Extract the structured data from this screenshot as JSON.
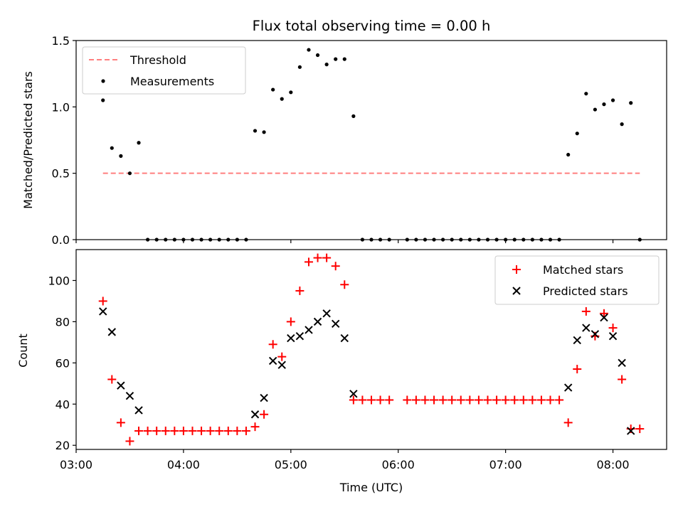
{
  "chart_data": [
    {
      "type": "scatter",
      "title": "Flux total observing time = 0.00 h",
      "xlabel": "",
      "ylabel": "Matched/Predicted stars",
      "xlim": [
        "03:00",
        "08:30"
      ],
      "ylim": [
        0.0,
        1.5
      ],
      "y_ticks": [
        "0.0",
        "0.5",
        "1.0",
        "1.5"
      ],
      "legend_position": "upper left",
      "threshold": {
        "name": "Threshold",
        "value": 0.5,
        "x_start": "03:15",
        "x_end": "08:15",
        "color": "#ff7f7f",
        "style": "dashed"
      },
      "series": [
        {
          "name": "Measurements",
          "color": "#000000",
          "marker": "dot",
          "points": [
            [
              "03:15",
              1.05
            ],
            [
              "03:20",
              0.69
            ],
            [
              "03:25",
              0.63
            ],
            [
              "03:30",
              0.5
            ],
            [
              "03:35",
              0.73
            ],
            [
              "03:40",
              0.0
            ],
            [
              "03:45",
              0.0
            ],
            [
              "03:50",
              0.0
            ],
            [
              "03:55",
              0.0
            ],
            [
              "04:00",
              0.0
            ],
            [
              "04:05",
              0.0
            ],
            [
              "04:10",
              0.0
            ],
            [
              "04:15",
              0.0
            ],
            [
              "04:20",
              0.0
            ],
            [
              "04:25",
              0.0
            ],
            [
              "04:30",
              0.0
            ],
            [
              "04:35",
              0.0
            ],
            [
              "04:40",
              0.82
            ],
            [
              "04:45",
              0.81
            ],
            [
              "04:50",
              1.13
            ],
            [
              "04:55",
              1.06
            ],
            [
              "05:00",
              1.11
            ],
            [
              "05:05",
              1.3
            ],
            [
              "05:10",
              1.43
            ],
            [
              "05:15",
              1.39
            ],
            [
              "05:20",
              1.32
            ],
            [
              "05:25",
              1.36
            ],
            [
              "05:30",
              1.36
            ],
            [
              "05:35",
              0.93
            ],
            [
              "05:40",
              0.0
            ],
            [
              "05:45",
              0.0
            ],
            [
              "05:50",
              0.0
            ],
            [
              "05:55",
              0.0
            ],
            [
              "06:05",
              0.0
            ],
            [
              "06:10",
              0.0
            ],
            [
              "06:15",
              0.0
            ],
            [
              "06:20",
              0.0
            ],
            [
              "06:25",
              0.0
            ],
            [
              "06:30",
              0.0
            ],
            [
              "06:35",
              0.0
            ],
            [
              "06:40",
              0.0
            ],
            [
              "06:45",
              0.0
            ],
            [
              "06:50",
              0.0
            ],
            [
              "06:55",
              0.0
            ],
            [
              "07:00",
              0.0
            ],
            [
              "07:05",
              0.0
            ],
            [
              "07:10",
              0.0
            ],
            [
              "07:15",
              0.0
            ],
            [
              "07:20",
              0.0
            ],
            [
              "07:25",
              0.0
            ],
            [
              "07:30",
              0.0
            ],
            [
              "07:35",
              0.64
            ],
            [
              "07:40",
              0.8
            ],
            [
              "07:45",
              1.1
            ],
            [
              "07:50",
              0.98
            ],
            [
              "07:55",
              1.02
            ],
            [
              "08:00",
              1.05
            ],
            [
              "08:05",
              0.87
            ],
            [
              "08:10",
              1.03
            ],
            [
              "08:15",
              0.0
            ]
          ]
        }
      ]
    },
    {
      "type": "scatter",
      "title": "",
      "xlabel": "Time (UTC)",
      "ylabel": "Count",
      "xlim": [
        "03:00",
        "08:30"
      ],
      "ylim": [
        18,
        115
      ],
      "x_ticks": [
        "03:00",
        "04:00",
        "05:00",
        "06:00",
        "07:00",
        "08:00"
      ],
      "y_ticks": [
        "20",
        "40",
        "60",
        "80",
        "100"
      ],
      "legend_position": "upper right",
      "series": [
        {
          "name": "Matched stars",
          "color": "#ff0000",
          "marker": "plus",
          "points": [
            [
              "03:15",
              90
            ],
            [
              "03:20",
              52
            ],
            [
              "03:25",
              31
            ],
            [
              "03:30",
              22
            ],
            [
              "03:35",
              27
            ],
            [
              "03:40",
              27
            ],
            [
              "03:45",
              27
            ],
            [
              "03:50",
              27
            ],
            [
              "03:55",
              27
            ],
            [
              "04:00",
              27
            ],
            [
              "04:05",
              27
            ],
            [
              "04:10",
              27
            ],
            [
              "04:15",
              27
            ],
            [
              "04:20",
              27
            ],
            [
              "04:25",
              27
            ],
            [
              "04:30",
              27
            ],
            [
              "04:35",
              27
            ],
            [
              "04:40",
              29
            ],
            [
              "04:45",
              35
            ],
            [
              "04:50",
              69
            ],
            [
              "04:55",
              63
            ],
            [
              "05:00",
              80
            ],
            [
              "05:05",
              95
            ],
            [
              "05:10",
              109
            ],
            [
              "05:15",
              111
            ],
            [
              "05:20",
              111
            ],
            [
              "05:25",
              107
            ],
            [
              "05:30",
              98
            ],
            [
              "05:35",
              42
            ],
            [
              "05:40",
              42
            ],
            [
              "05:45",
              42
            ],
            [
              "05:50",
              42
            ],
            [
              "05:55",
              42
            ],
            [
              "06:05",
              42
            ],
            [
              "06:10",
              42
            ],
            [
              "06:15",
              42
            ],
            [
              "06:20",
              42
            ],
            [
              "06:25",
              42
            ],
            [
              "06:30",
              42
            ],
            [
              "06:35",
              42
            ],
            [
              "06:40",
              42
            ],
            [
              "06:45",
              42
            ],
            [
              "06:50",
              42
            ],
            [
              "06:55",
              42
            ],
            [
              "07:00",
              42
            ],
            [
              "07:05",
              42
            ],
            [
              "07:10",
              42
            ],
            [
              "07:15",
              42
            ],
            [
              "07:20",
              42
            ],
            [
              "07:25",
              42
            ],
            [
              "07:30",
              42
            ],
            [
              "07:35",
              31
            ],
            [
              "07:40",
              57
            ],
            [
              "07:45",
              85
            ],
            [
              "07:50",
              73
            ],
            [
              "07:55",
              84
            ],
            [
              "08:00",
              77
            ],
            [
              "08:05",
              52
            ],
            [
              "08:10",
              28
            ],
            [
              "08:15",
              28
            ]
          ]
        },
        {
          "name": "Predicted stars",
          "color": "#000000",
          "marker": "x",
          "points": [
            [
              "03:15",
              85
            ],
            [
              "03:20",
              75
            ],
            [
              "03:25",
              49
            ],
            [
              "03:30",
              44
            ],
            [
              "03:35",
              37
            ],
            [
              "04:40",
              35
            ],
            [
              "04:45",
              43
            ],
            [
              "04:50",
              61
            ],
            [
              "04:55",
              59
            ],
            [
              "05:00",
              72
            ],
            [
              "05:05",
              73
            ],
            [
              "05:10",
              76
            ],
            [
              "05:15",
              80
            ],
            [
              "05:20",
              84
            ],
            [
              "05:25",
              79
            ],
            [
              "05:30",
              72
            ],
            [
              "05:35",
              45
            ],
            [
              "07:35",
              48
            ],
            [
              "07:40",
              71
            ],
            [
              "07:45",
              77
            ],
            [
              "07:50",
              74
            ],
            [
              "07:55",
              82
            ],
            [
              "08:00",
              73
            ],
            [
              "08:05",
              60
            ],
            [
              "08:10",
              27
            ]
          ]
        }
      ]
    }
  ]
}
